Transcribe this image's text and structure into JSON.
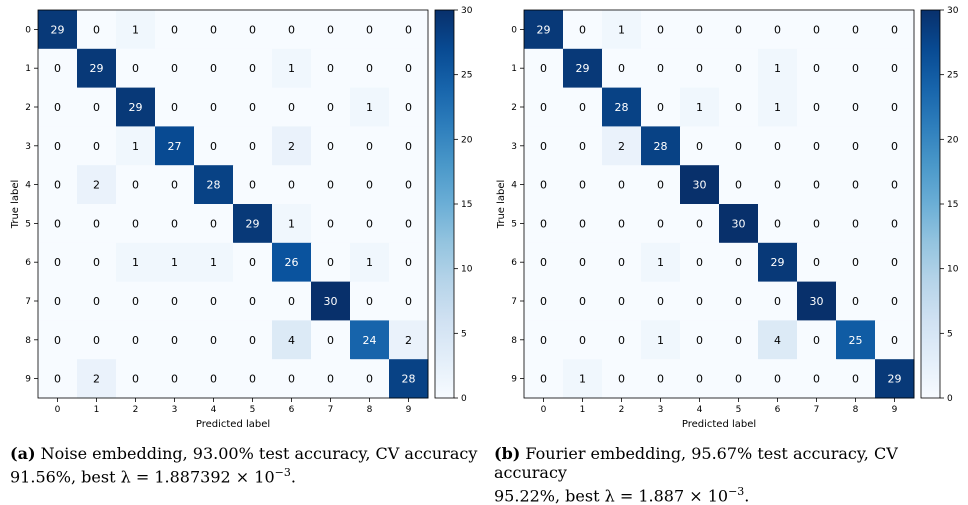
{
  "chart_data": [
    {
      "type": "heatmap",
      "xlabel": "Predicted label",
      "ylabel": "True label",
      "x_ticks": [
        "0",
        "1",
        "2",
        "3",
        "4",
        "5",
        "6",
        "7",
        "8",
        "9"
      ],
      "y_ticks": [
        "0",
        "1",
        "2",
        "3",
        "4",
        "5",
        "6",
        "7",
        "8",
        "9"
      ],
      "colorbar": {
        "range": [
          0,
          30
        ],
        "ticks": [
          0,
          5,
          10,
          15,
          20,
          25,
          30
        ],
        "colormap": "Blues"
      },
      "matrix": [
        [
          29,
          0,
          1,
          0,
          0,
          0,
          0,
          0,
          0,
          0
        ],
        [
          0,
          29,
          0,
          0,
          0,
          0,
          1,
          0,
          0,
          0
        ],
        [
          0,
          0,
          29,
          0,
          0,
          0,
          0,
          0,
          1,
          0
        ],
        [
          0,
          0,
          1,
          27,
          0,
          0,
          2,
          0,
          0,
          0
        ],
        [
          0,
          2,
          0,
          0,
          28,
          0,
          0,
          0,
          0,
          0
        ],
        [
          0,
          0,
          0,
          0,
          0,
          29,
          1,
          0,
          0,
          0
        ],
        [
          0,
          0,
          1,
          1,
          1,
          0,
          26,
          0,
          1,
          0
        ],
        [
          0,
          0,
          0,
          0,
          0,
          0,
          0,
          30,
          0,
          0
        ],
        [
          0,
          0,
          0,
          0,
          0,
          0,
          4,
          0,
          24,
          2
        ],
        [
          0,
          2,
          0,
          0,
          0,
          0,
          0,
          0,
          0,
          28
        ]
      ]
    },
    {
      "type": "heatmap",
      "xlabel": "Predicted label",
      "ylabel": "True label",
      "x_ticks": [
        "0",
        "1",
        "2",
        "3",
        "4",
        "5",
        "6",
        "7",
        "8",
        "9"
      ],
      "y_ticks": [
        "0",
        "1",
        "2",
        "3",
        "4",
        "5",
        "6",
        "7",
        "8",
        "9"
      ],
      "colorbar": {
        "range": [
          0,
          30
        ],
        "ticks": [
          0,
          5,
          10,
          15,
          20,
          25,
          30
        ],
        "colormap": "Blues"
      },
      "matrix": [
        [
          29,
          0,
          1,
          0,
          0,
          0,
          0,
          0,
          0,
          0
        ],
        [
          0,
          29,
          0,
          0,
          0,
          0,
          1,
          0,
          0,
          0
        ],
        [
          0,
          0,
          28,
          0,
          1,
          0,
          1,
          0,
          0,
          0
        ],
        [
          0,
          0,
          2,
          28,
          0,
          0,
          0,
          0,
          0,
          0
        ],
        [
          0,
          0,
          0,
          0,
          30,
          0,
          0,
          0,
          0,
          0
        ],
        [
          0,
          0,
          0,
          0,
          0,
          30,
          0,
          0,
          0,
          0
        ],
        [
          0,
          0,
          0,
          1,
          0,
          0,
          29,
          0,
          0,
          0
        ],
        [
          0,
          0,
          0,
          0,
          0,
          0,
          0,
          30,
          0,
          0
        ],
        [
          0,
          0,
          0,
          1,
          0,
          0,
          4,
          0,
          25,
          0
        ],
        [
          0,
          1,
          0,
          0,
          0,
          0,
          0,
          0,
          0,
          29
        ]
      ]
    }
  ],
  "captions": [
    {
      "label": "(a)",
      "line1": "Noise embedding, 93.00% test accuracy, CV accuracy",
      "line2": "91.56%, best λ = 1.887392 × 10",
      "exponent": "−3",
      "end": "."
    },
    {
      "label": "(b)",
      "line1": "Fourier embedding, 95.67% test accuracy, CV accuracy",
      "line2": "95.22%, best λ = 1.887 × 10",
      "exponent": "−3",
      "end": "."
    }
  ],
  "colors": {
    "cmap_low": "#f7fbff",
    "cmap_high": "#08306b",
    "text_dark": "#000000",
    "text_light": "#ffffff"
  }
}
